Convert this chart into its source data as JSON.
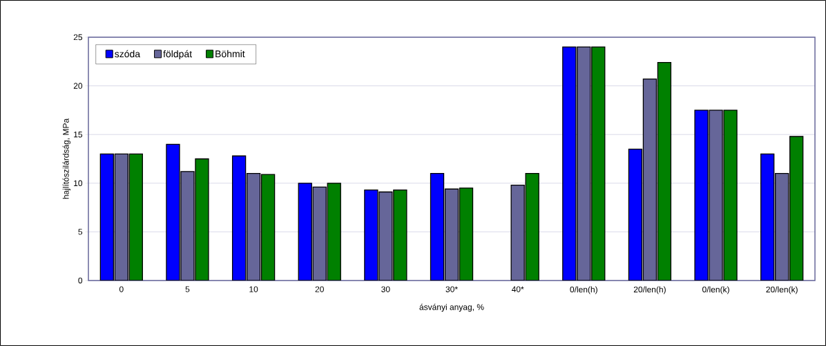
{
  "chart_data": {
    "type": "bar",
    "xlabel": "ásványi anyag, %",
    "ylabel": "hajlítószilárdság, MPa",
    "categories": [
      "0",
      "5",
      "10",
      "20",
      "30",
      "30*",
      "40*",
      "0/len(h)",
      "20/len(h)",
      "0/len(k)",
      "20/len(k)"
    ],
    "series": [
      {
        "name": "szóda",
        "color": "#0000ff",
        "values": [
          13,
          14,
          12.8,
          10,
          9.3,
          11,
          null,
          24,
          13.5,
          17.5,
          13
        ]
      },
      {
        "name": "földpát",
        "color": "#666699",
        "values": [
          13,
          11.2,
          11,
          9.6,
          9.1,
          9.4,
          9.8,
          24,
          20.7,
          17.5,
          11
        ]
      },
      {
        "name": "Böhmit",
        "color": "#008000",
        "values": [
          13,
          12.5,
          10.9,
          10,
          9.3,
          9.5,
          11,
          24,
          22.4,
          17.5,
          14.8
        ]
      }
    ],
    "ylim": [
      0,
      25
    ],
    "yticks": [
      0,
      5,
      10,
      15,
      20,
      25
    ],
    "grid": "y",
    "legend": "top left"
  }
}
